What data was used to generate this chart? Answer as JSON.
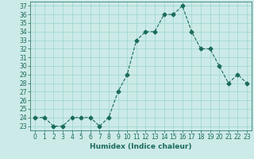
{
  "x": [
    0,
    1,
    2,
    3,
    4,
    5,
    6,
    7,
    8,
    9,
    10,
    11,
    12,
    13,
    14,
    15,
    16,
    17,
    18,
    19,
    20,
    21,
    22,
    23
  ],
  "y": [
    24,
    24,
    23,
    23,
    24,
    24,
    24,
    23,
    24,
    27,
    29,
    33,
    34,
    34,
    36,
    36,
    37,
    34,
    32,
    32,
    30,
    28,
    29,
    28
  ],
  "xlabel": "Humidex (Indice chaleur)",
  "ylim": [
    22.5,
    37.5
  ],
  "xlim": [
    -0.5,
    23.5
  ],
  "yticks": [
    23,
    24,
    25,
    26,
    27,
    28,
    29,
    30,
    31,
    32,
    33,
    34,
    35,
    36,
    37
  ],
  "xticks": [
    0,
    1,
    2,
    3,
    4,
    5,
    6,
    7,
    8,
    9,
    10,
    11,
    12,
    13,
    14,
    15,
    16,
    17,
    18,
    19,
    20,
    21,
    22,
    23
  ],
  "line_color": "#1a6b5a",
  "marker": "D",
  "marker_size": 2.5,
  "bg_color": "#cceae7",
  "grid_color": "#99d5d0",
  "tick_label_color": "#1a6b5a",
  "tick_fontsize": 5.5,
  "xlabel_fontsize": 6.5
}
